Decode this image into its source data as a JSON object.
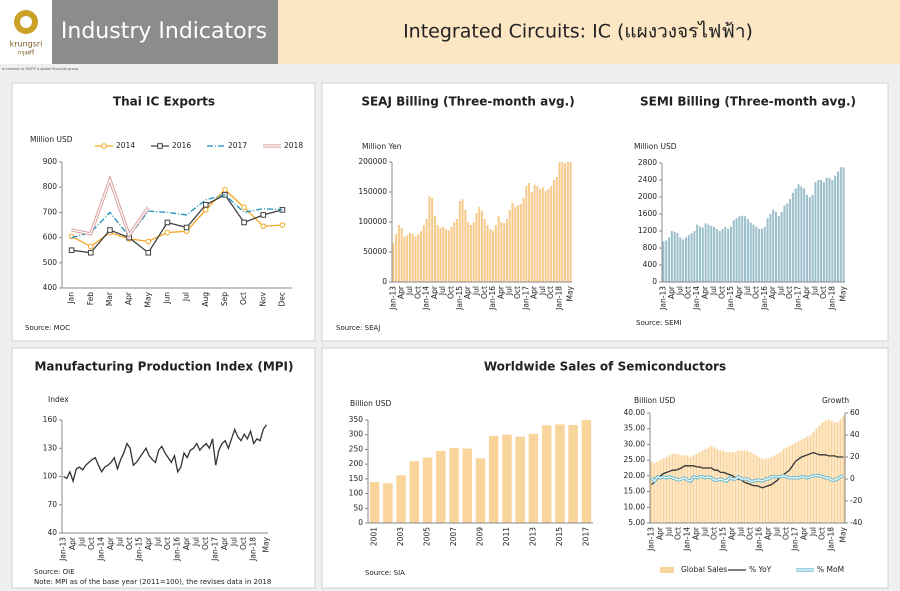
{
  "header": {
    "logo": "krungsri",
    "logo_thai": "กรุงศรี",
    "logo_tag": "a member of MUFG a global financial group",
    "title": "Industry Indicators",
    "subtitle": "Integrated Circuits: IC (แผงวงจรไฟฟ้า)"
  },
  "chart_data": [
    {
      "type": "line",
      "title": "Thai IC Exports",
      "y_label": "Million USD",
      "source": "Source: MOC",
      "legend": "top",
      "grid": false,
      "categories": [
        "Jan",
        "Feb",
        "Mar",
        "Apr",
        "May",
        "Jun",
        "Jul",
        "Aug",
        "Sep",
        "Oct",
        "Nov",
        "Dec"
      ],
      "ylim": [
        400,
        900
      ],
      "yticks": [
        400,
        500,
        600,
        700,
        800,
        900
      ],
      "series": [
        {
          "name": "2014",
          "color": "#f5a623",
          "marker": "circle",
          "values": [
            605,
            565,
            620,
            595,
            585,
            620,
            625,
            710,
            790,
            720,
            645,
            650
          ]
        },
        {
          "name": "2016",
          "color": "#404040",
          "marker": "square",
          "values": [
            550,
            540,
            630,
            600,
            540,
            660,
            640,
            730,
            770,
            660,
            690,
            710
          ]
        },
        {
          "name": "2017",
          "color": "#1f8fb8",
          "dash": "6 2 1 2",
          "values": [
            600,
            620,
            700,
            605,
            705,
            700,
            690,
            750,
            770,
            700,
            715,
            710
          ]
        },
        {
          "name": "2018",
          "color": "#d9a0a0",
          "line_style": "double",
          "values": [
            630,
            615,
            830,
            610,
            720,
            null,
            null,
            null,
            null,
            null,
            null,
            null
          ]
        }
      ]
    },
    {
      "type": "bar",
      "title": "SEAJ Billing (Three-month avg.)",
      "y_label": "Million Yen",
      "source": "Source: SEAJ",
      "color": "#f7c98a",
      "grid": false,
      "categories": [
        "Jan-13",
        null,
        null,
        "Apr",
        null,
        null,
        "Jul",
        null,
        null,
        "Oct",
        null,
        null,
        "Jan-14",
        null,
        null,
        "Apr",
        null,
        null,
        "Jul",
        null,
        null,
        "Oct",
        null,
        null,
        "Jan-15",
        null,
        null,
        "Apr",
        null,
        null,
        "Jul",
        null,
        null,
        "Oct",
        null,
        null,
        "Jan-16",
        null,
        null,
        "Apr",
        null,
        null,
        "Jul",
        null,
        null,
        "Oct",
        null,
        null,
        "Jan-17",
        null,
        null,
        "Apr",
        null,
        null,
        "Jul",
        null,
        null,
        "Oct",
        null,
        null,
        "Jan-18",
        null,
        null,
        null,
        "May"
      ],
      "ylim": [
        0,
        200000
      ],
      "yticks": [
        0,
        50000,
        100000,
        150000,
        200000
      ],
      "values": [
        65000,
        80000,
        95000,
        90000,
        75000,
        78000,
        82000,
        80000,
        76000,
        80000,
        85000,
        95000,
        105000,
        143000,
        140000,
        110000,
        95000,
        90000,
        92000,
        88000,
        86000,
        92000,
        100000,
        105000,
        135000,
        138000,
        120000,
        100000,
        95000,
        100000,
        115000,
        125000,
        118000,
        105000,
        95000,
        88000,
        86000,
        95000,
        110000,
        100000,
        98000,
        105000,
        120000,
        132000,
        125000,
        128000,
        130000,
        140000,
        160000,
        165000,
        150000,
        162000,
        160000,
        155000,
        158000,
        152000,
        155000,
        160000,
        170000,
        175000,
        200000,
        200000,
        198000,
        200000,
        200000
      ]
    },
    {
      "type": "bar",
      "title": "SEMI Billing  (Three-month avg.)",
      "y_label": "Million USD",
      "source": "Source: SEMI",
      "color": "#9bbfcb",
      "grid": false,
      "categories": [
        "Jan-13",
        null,
        null,
        "Apr",
        null,
        null,
        "Jul",
        null,
        null,
        "Oct",
        null,
        null,
        "Jan-14",
        null,
        null,
        "Apr",
        null,
        null,
        "Jul",
        null,
        null,
        "Oct",
        null,
        null,
        "Jan-15",
        null,
        null,
        "Apr",
        null,
        null,
        "Jul",
        null,
        null,
        "Oct",
        null,
        null,
        "Jan-16",
        null,
        null,
        "Apr",
        null,
        null,
        "Jul",
        null,
        null,
        "Oct",
        null,
        null,
        "Jan-17",
        null,
        null,
        "Apr",
        null,
        null,
        "Jul",
        null,
        null,
        "Oct",
        null,
        null,
        "Jan-18",
        null,
        null,
        null,
        "May"
      ],
      "ylim": [
        0,
        2800
      ],
      "yticks": [
        0,
        400,
        800,
        1200,
        1600,
        2000,
        2400,
        2800
      ],
      "values": [
        950,
        980,
        1050,
        1200,
        1180,
        1150,
        1050,
        1000,
        1050,
        1100,
        1150,
        1200,
        1350,
        1300,
        1280,
        1380,
        1350,
        1320,
        1300,
        1250,
        1200,
        1250,
        1300,
        1250,
        1300,
        1450,
        1500,
        1550,
        1560,
        1550,
        1480,
        1400,
        1350,
        1300,
        1250,
        1250,
        1300,
        1500,
        1600,
        1700,
        1650,
        1550,
        1650,
        1800,
        1850,
        1950,
        2100,
        2200,
        2300,
        2250,
        2200,
        2050,
        2000,
        2050,
        2350,
        2400,
        2400,
        2350,
        2450,
        2450,
        2400,
        2500,
        2600,
        2700,
        2700
      ]
    },
    {
      "type": "line",
      "title": "Manufacturing Production Index (MPI)",
      "y_label": "Index",
      "source": "Source: OIE",
      "note": "Note: MPI as of the base year (2011=100), the revises data in 2018",
      "color": "#333333",
      "grid": false,
      "categories": [
        "Jan-13",
        null,
        null,
        "Apr",
        null,
        null,
        "Jul",
        null,
        null,
        "Oct",
        null,
        null,
        "Jan-14",
        null,
        null,
        "Apr",
        null,
        null,
        "Jul",
        null,
        null,
        "Oct",
        null,
        null,
        "Jan-15",
        null,
        null,
        "Apr",
        null,
        null,
        "Jul",
        null,
        null,
        "Oct",
        null,
        null,
        "Jan-16",
        null,
        null,
        "Apr",
        null,
        null,
        "Jul",
        null,
        null,
        "Oct",
        null,
        null,
        "Jan-17",
        null,
        null,
        "Apr",
        null,
        null,
        "Jul",
        null,
        null,
        "Oct",
        null,
        null,
        "Jan-18",
        null,
        null,
        null,
        "May"
      ],
      "ylim": [
        40,
        160
      ],
      "yticks": [
        40,
        70,
        100,
        130,
        160
      ],
      "values": [
        100,
        98,
        105,
        95,
        108,
        110,
        107,
        112,
        115,
        118,
        120,
        112,
        105,
        110,
        112,
        115,
        120,
        108,
        118,
        125,
        135,
        130,
        112,
        115,
        120,
        125,
        130,
        122,
        118,
        115,
        128,
        132,
        125,
        120,
        115,
        122,
        105,
        110,
        125,
        120,
        128,
        130,
        135,
        128,
        132,
        135,
        130,
        140,
        112,
        128,
        135,
        138,
        130,
        140,
        150,
        142,
        138,
        145,
        140,
        148,
        135,
        140,
        138,
        150,
        155
      ]
    },
    {
      "type": "bar",
      "title": "Worldwide Sales of Semiconductors",
      "y_label": "Billion USD",
      "source": "Source: SIA",
      "color": "#f9d49b",
      "grid": false,
      "categories": [
        "2001",
        null,
        "2003",
        null,
        "2005",
        null,
        "2007",
        null,
        "2009",
        null,
        "2011",
        null,
        "2013",
        null,
        "2015",
        null,
        "2017"
      ],
      "ylim": [
        0,
        350
      ],
      "yticks": [
        0,
        50,
        100,
        150,
        200,
        250,
        300,
        350
      ],
      "values": [
        139,
        135,
        162,
        210,
        222,
        245,
        255,
        253,
        220,
        296,
        300,
        293,
        303,
        332,
        335,
        333,
        350
      ]
    },
    {
      "type": "combo",
      "y_label": "Billion USD",
      "y2_label": "Growth",
      "legend": "bottom",
      "grid": false,
      "categories": [
        "Jan-13",
        null,
        null,
        "Apr",
        null,
        null,
        "Jul",
        null,
        null,
        "Oct",
        null,
        null,
        "Jan-14",
        null,
        null,
        "Apr",
        null,
        null,
        "Jul",
        null,
        null,
        "Oct",
        null,
        null,
        "Jan-15",
        null,
        null,
        "Apr",
        null,
        null,
        "Jul",
        null,
        null,
        "Oct",
        null,
        null,
        "Jan-16",
        null,
        null,
        "Apr",
        null,
        null,
        "Jul",
        null,
        null,
        "Oct",
        null,
        null,
        "Jan-17",
        null,
        null,
        "Apr",
        null,
        null,
        "Jul",
        null,
        null,
        "Oct",
        null,
        null,
        "Jan-18",
        null,
        null,
        null,
        "May"
      ],
      "ylim": [
        5,
        40
      ],
      "yticks": [
        {
          "value": 5,
          "label": "5.00"
        },
        {
          "value": 10,
          "label": "10.00"
        },
        {
          "value": 15,
          "label": "15.00"
        },
        {
          "value": 20,
          "label": "20.00"
        },
        {
          "value": 25,
          "label": "25.00"
        },
        {
          "value": 30,
          "label": "30.00"
        },
        {
          "value": 35,
          "label": "35.00"
        },
        {
          "value": 40,
          "label": "40.00"
        }
      ],
      "y2lim": [
        -40,
        60
      ],
      "y2ticks": [
        -40,
        -20,
        0,
        20,
        40,
        60
      ],
      "series": [
        {
          "name": "Global Sales",
          "type": "bar",
          "color": "#f9d49b",
          "values": [
            24.5,
            24.0,
            24.5,
            25.0,
            25.5,
            26.0,
            26.5,
            27.0,
            27.0,
            26.8,
            26.5,
            26.5,
            26.5,
            26.0,
            26.5,
            27.0,
            27.5,
            28.0,
            28.5,
            29.0,
            29.5,
            29.0,
            28.5,
            28.0,
            28.0,
            27.5,
            27.5,
            27.5,
            27.5,
            28.0,
            28.0,
            28.0,
            28.0,
            27.5,
            27.0,
            26.5,
            26.0,
            25.5,
            25.5,
            25.5,
            26.0,
            26.5,
            27.0,
            27.5,
            28.5,
            29.0,
            29.5,
            30.0,
            30.5,
            31.0,
            31.5,
            32.0,
            32.5,
            33.0,
            34.0,
            35.0,
            36.0,
            37.0,
            37.5,
            38.0,
            37.5,
            37.0,
            37.0,
            38.0,
            39.0
          ]
        },
        {
          "name": "% YoY",
          "type": "line",
          "axis": "y2",
          "color": "#333333",
          "values": [
            -5,
            -3,
            0,
            3,
            5,
            6,
            7,
            8,
            8,
            9,
            10,
            12,
            12,
            12,
            12,
            11,
            11,
            10,
            10,
            10,
            10,
            8,
            8,
            6,
            6,
            5,
            4,
            3,
            1,
            0,
            -1,
            -3,
            -4,
            -5,
            -6,
            -6,
            -7,
            -8,
            -7,
            -6,
            -5,
            -3,
            -1,
            2,
            4,
            6,
            8,
            12,
            16,
            18,
            20,
            21,
            22,
            23,
            24,
            23,
            22,
            22,
            22,
            21,
            21,
            21,
            20,
            20,
            20
          ]
        },
        {
          "name": "% MoM",
          "type": "line",
          "axis": "y2",
          "color": "#5fb6cf",
          "line_style": "double",
          "values": [
            1,
            -2,
            2,
            1,
            2,
            1,
            2,
            1,
            0,
            -1,
            0,
            1,
            -1,
            -2,
            2,
            1,
            2,
            2,
            1,
            2,
            1,
            -1,
            -1,
            0,
            -1,
            -2,
            1,
            0,
            0,
            2,
            0,
            0,
            0,
            -2,
            -2,
            -1,
            -1,
            -2,
            0,
            0,
            2,
            2,
            2,
            2,
            3,
            2,
            1,
            1,
            1,
            1,
            2,
            2,
            1,
            2,
            3,
            3,
            3,
            2,
            1,
            1,
            -1,
            -1,
            0,
            2,
            3
          ]
        }
      ]
    }
  ]
}
